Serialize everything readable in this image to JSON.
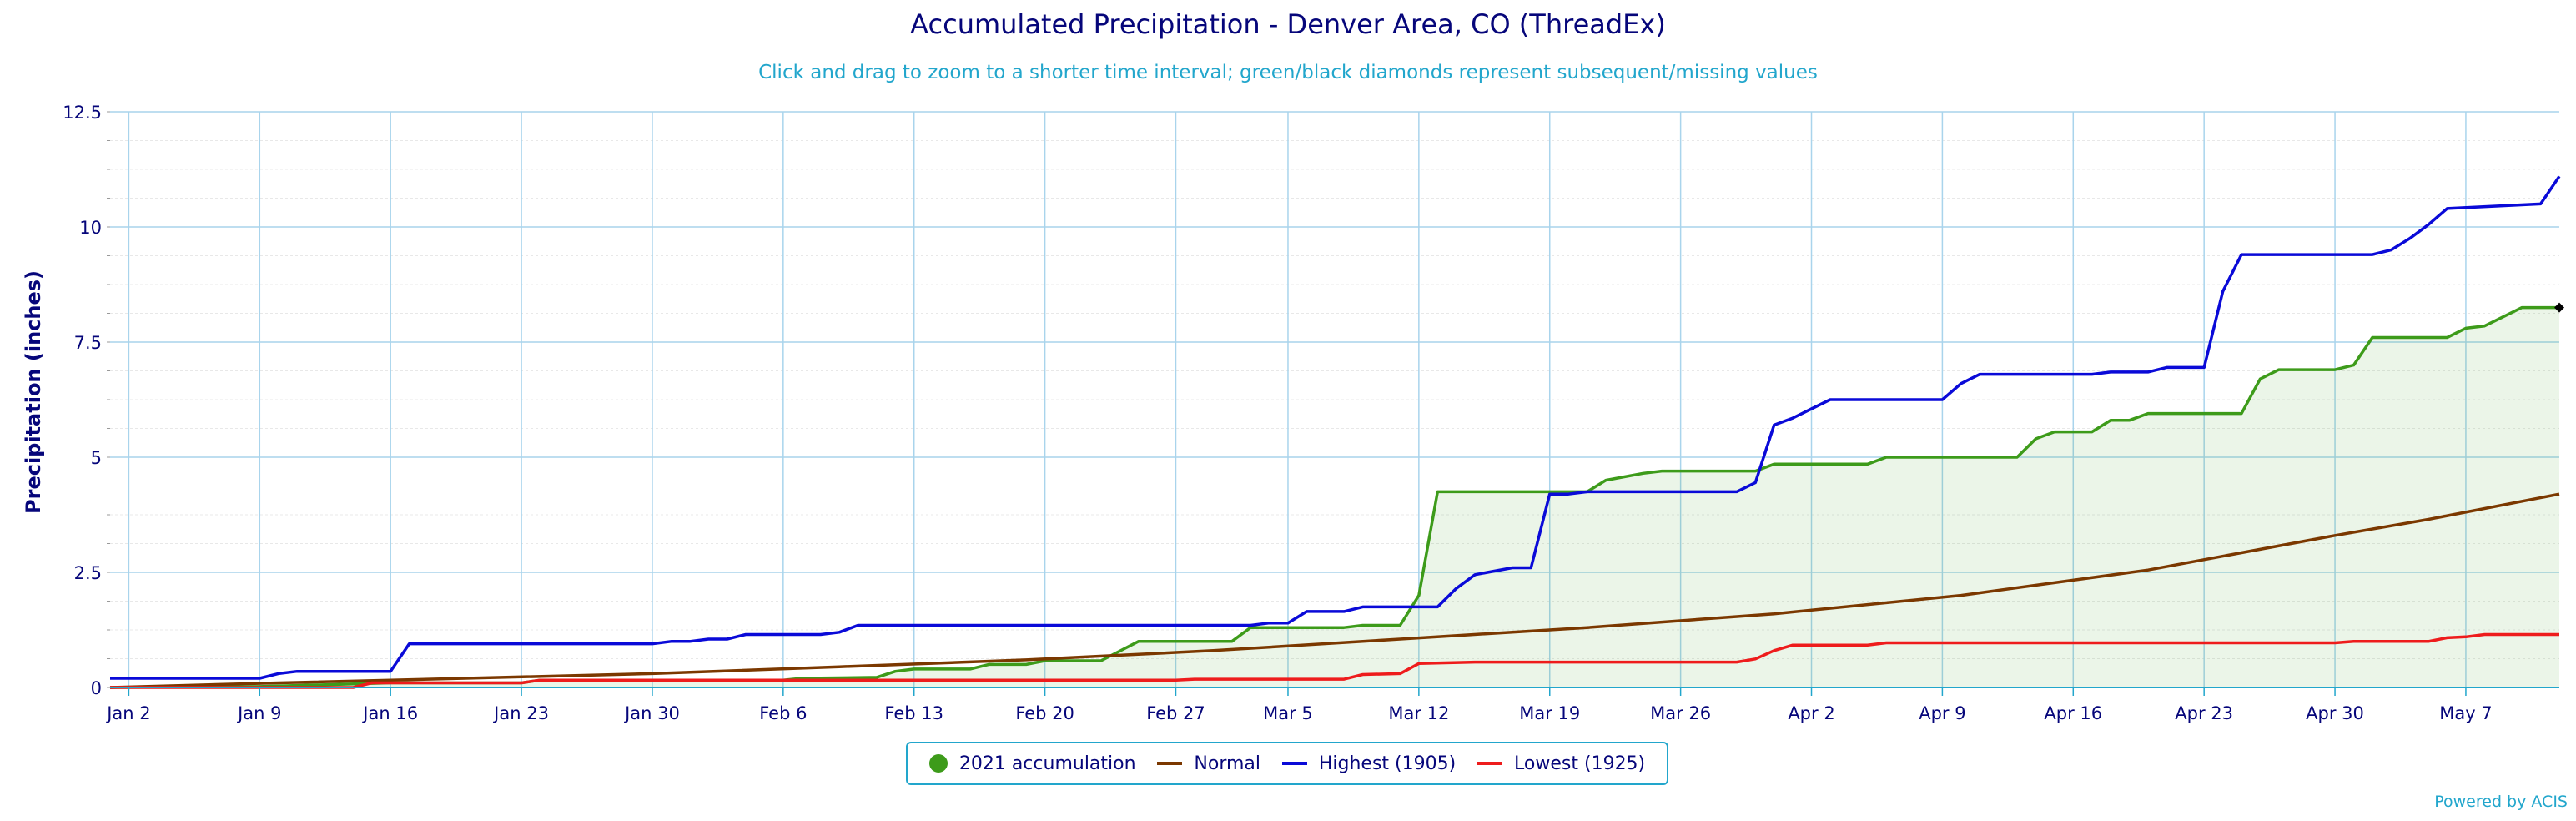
{
  "chart_data": {
    "type": "line",
    "title": "Accumulated Precipitation - Denver Area, CO (ThreadEx)",
    "subtitle": "Click and drag to zoom to a shorter time interval; green/black diamonds represent subsequent/missing values",
    "ylabel": "Precipitation (inches)",
    "xlabel": "",
    "ylim": [
      0,
      12.5
    ],
    "yticks": [
      "0",
      "2.5",
      "5",
      "7.5",
      "10",
      "12.5"
    ],
    "xticks": [
      {
        "label": "Jan 2",
        "day": 2
      },
      {
        "label": "Jan 9",
        "day": 9
      },
      {
        "label": "Jan 16",
        "day": 16
      },
      {
        "label": "Jan 23",
        "day": 23
      },
      {
        "label": "Jan 30",
        "day": 30
      },
      {
        "label": "Feb 6",
        "day": 37
      },
      {
        "label": "Feb 13",
        "day": 44
      },
      {
        "label": "Feb 20",
        "day": 51
      },
      {
        "label": "Feb 27",
        "day": 58
      },
      {
        "label": "Mar 5",
        "day": 64
      },
      {
        "label": "Mar 12",
        "day": 71
      },
      {
        "label": "Mar 19",
        "day": 78
      },
      {
        "label": "Mar 26",
        "day": 85
      },
      {
        "label": "Apr 2",
        "day": 92
      },
      {
        "label": "Apr 9",
        "day": 99
      },
      {
        "label": "Apr 16",
        "day": 106
      },
      {
        "label": "Apr 23",
        "day": 113
      },
      {
        "label": "Apr 30",
        "day": 120
      },
      {
        "label": "May 7",
        "day": 127
      }
    ],
    "x_range_day": [
      1,
      132
    ],
    "grid": true,
    "legend_position": "bottom-center",
    "credits": "Powered by ACIS",
    "series": [
      {
        "name": "2021 accumulation",
        "color": "#3d9b1a",
        "area": true,
        "points": [
          [
            1,
            0
          ],
          [
            9,
            0.02
          ],
          [
            16,
            0.1
          ],
          [
            23,
            0.1
          ],
          [
            24,
            0.16
          ],
          [
            37,
            0.16
          ],
          [
            38,
            0.2
          ],
          [
            42,
            0.22
          ],
          [
            43,
            0.35
          ],
          [
            44,
            0.4
          ],
          [
            47,
            0.4
          ],
          [
            48,
            0.5
          ],
          [
            50,
            0.5
          ],
          [
            51,
            0.58
          ],
          [
            54,
            0.58
          ],
          [
            56,
            1.0
          ],
          [
            61,
            1.0
          ],
          [
            62,
            1.3
          ],
          [
            67,
            1.3
          ],
          [
            68,
            1.35
          ],
          [
            70,
            1.35
          ],
          [
            71,
            2.0
          ],
          [
            72,
            4.25
          ],
          [
            80,
            4.25
          ],
          [
            81,
            4.5
          ],
          [
            83,
            4.65
          ],
          [
            84,
            4.7
          ],
          [
            89,
            4.7
          ],
          [
            90,
            4.85
          ],
          [
            95,
            4.85
          ],
          [
            96,
            5.0
          ],
          [
            103,
            5.0
          ],
          [
            104,
            5.4
          ],
          [
            105,
            5.55
          ],
          [
            107,
            5.55
          ],
          [
            108,
            5.8
          ],
          [
            109,
            5.8
          ],
          [
            110,
            5.95
          ],
          [
            115,
            5.95
          ],
          [
            116,
            6.7
          ],
          [
            117,
            6.9
          ],
          [
            120,
            6.9
          ],
          [
            121,
            7.0
          ],
          [
            122,
            7.6
          ],
          [
            126,
            7.6
          ],
          [
            127,
            7.8
          ],
          [
            128,
            7.85
          ],
          [
            130,
            8.25
          ],
          [
            132,
            8.25
          ]
        ]
      },
      {
        "name": "Normal",
        "color": "#7b3800",
        "area": false,
        "points": [
          [
            1,
            0.0
          ],
          [
            10,
            0.1
          ],
          [
            20,
            0.2
          ],
          [
            30,
            0.3
          ],
          [
            40,
            0.45
          ],
          [
            50,
            0.6
          ],
          [
            60,
            0.8
          ],
          [
            70,
            1.05
          ],
          [
            80,
            1.3
          ],
          [
            90,
            1.6
          ],
          [
            100,
            2.0
          ],
          [
            110,
            2.55
          ],
          [
            120,
            3.3
          ],
          [
            125,
            3.65
          ],
          [
            132,
            4.2
          ]
        ]
      },
      {
        "name": "Highest (1905)",
        "color": "#0a0ad8",
        "area": false,
        "points": [
          [
            1,
            0.2
          ],
          [
            9,
            0.2
          ],
          [
            10,
            0.3
          ],
          [
            11,
            0.35
          ],
          [
            16,
            0.35
          ],
          [
            17,
            0.95
          ],
          [
            30,
            0.95
          ],
          [
            31,
            1.0
          ],
          [
            32,
            1.0
          ],
          [
            33,
            1.05
          ],
          [
            34,
            1.05
          ],
          [
            35,
            1.15
          ],
          [
            39,
            1.15
          ],
          [
            40,
            1.2
          ],
          [
            41,
            1.35
          ],
          [
            62,
            1.35
          ],
          [
            63,
            1.4
          ],
          [
            64,
            1.4
          ],
          [
            65,
            1.65
          ],
          [
            67,
            1.65
          ],
          [
            68,
            1.75
          ],
          [
            72,
            1.75
          ],
          [
            73,
            2.15
          ],
          [
            74,
            2.45
          ],
          [
            76,
            2.6
          ],
          [
            77,
            2.6
          ],
          [
            78,
            4.2
          ],
          [
            79,
            4.2
          ],
          [
            80,
            4.25
          ],
          [
            88,
            4.25
          ],
          [
            89,
            4.45
          ],
          [
            90,
            5.7
          ],
          [
            91,
            5.85
          ],
          [
            92,
            6.05
          ],
          [
            93,
            6.25
          ],
          [
            99,
            6.25
          ],
          [
            100,
            6.6
          ],
          [
            101,
            6.8
          ],
          [
            107,
            6.8
          ],
          [
            108,
            6.85
          ],
          [
            110,
            6.85
          ],
          [
            111,
            6.95
          ],
          [
            113,
            6.95
          ],
          [
            114,
            8.6
          ],
          [
            115,
            9.4
          ],
          [
            122,
            9.4
          ],
          [
            123,
            9.5
          ],
          [
            124,
            9.75
          ],
          [
            125,
            10.05
          ],
          [
            126,
            10.4
          ],
          [
            131,
            10.5
          ],
          [
            132,
            11.1
          ]
        ]
      },
      {
        "name": "Lowest (1925)",
        "color": "#ee1c1c",
        "area": false,
        "points": [
          [
            1,
            0.0
          ],
          [
            14,
            0.0
          ],
          [
            15,
            0.1
          ],
          [
            23,
            0.1
          ],
          [
            24,
            0.16
          ],
          [
            58,
            0.16
          ],
          [
            59,
            0.18
          ],
          [
            67,
            0.18
          ],
          [
            68,
            0.28
          ],
          [
            70,
            0.3
          ],
          [
            71,
            0.52
          ],
          [
            74,
            0.55
          ],
          [
            88,
            0.55
          ],
          [
            89,
            0.62
          ],
          [
            90,
            0.8
          ],
          [
            91,
            0.92
          ],
          [
            95,
            0.92
          ],
          [
            96,
            0.97
          ],
          [
            120,
            0.97
          ],
          [
            121,
            1.0
          ],
          [
            125,
            1.0
          ],
          [
            126,
            1.08
          ],
          [
            127,
            1.1
          ],
          [
            128,
            1.15
          ],
          [
            132,
            1.15
          ]
        ]
      }
    ],
    "markers": [
      {
        "series": "2021 accumulation",
        "day": 132,
        "value": 8.25,
        "color": "#000000",
        "shape": "diamond"
      }
    ]
  }
}
